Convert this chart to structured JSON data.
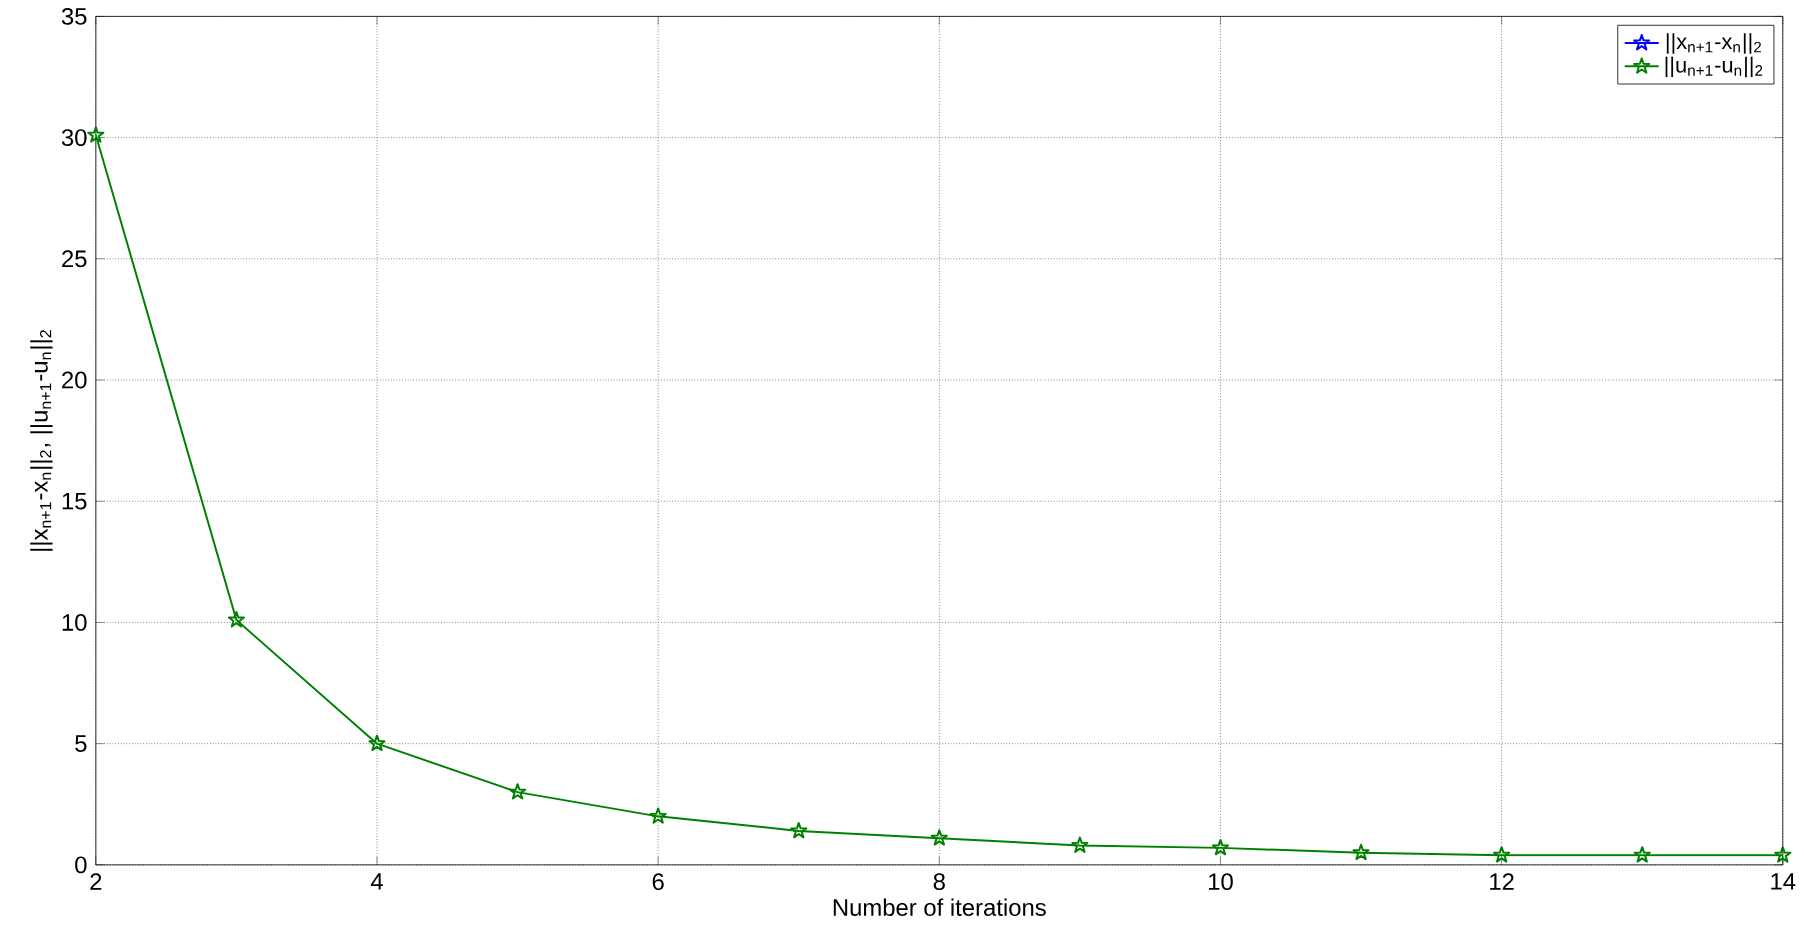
{
  "chart_data": {
    "type": "line",
    "xlabel": "Number of iterations",
    "ylabel": "||x$_{n+1}$-x$_{n}$||$_{2}$, ||u$_{n+1}$-u$_{n}$||$_{2}$",
    "x": [
      2,
      3,
      4,
      5,
      6,
      7,
      8,
      9,
      10,
      11,
      12,
      13,
      14
    ],
    "series": [
      {
        "name": "||x$_{n+1}$-x$_{n}$||$_{2}$",
        "color": "#0000ff",
        "values": [
          null,
          null,
          null,
          null,
          null,
          null,
          null,
          null,
          null,
          null,
          null,
          null,
          null
        ]
      },
      {
        "name": "||u$_{n+1}$-u$_{n}$||$_{2}$",
        "color": "#008000",
        "values": [
          30.1,
          10.1,
          5,
          3,
          2,
          1.4,
          1.1,
          0.8,
          0.7,
          0.5,
          0.4,
          0.4,
          0.4
        ]
      }
    ],
    "xlim": [
      2,
      14
    ],
    "xticks": [
      2,
      4,
      6,
      8,
      10,
      12,
      14
    ],
    "ylim": [
      0,
      35
    ],
    "yticks": [
      0,
      5,
      10,
      15,
      20,
      25,
      30,
      35
    ],
    "grid": true,
    "legend": "top right",
    "marker": "star",
    "line_style": "solid"
  }
}
